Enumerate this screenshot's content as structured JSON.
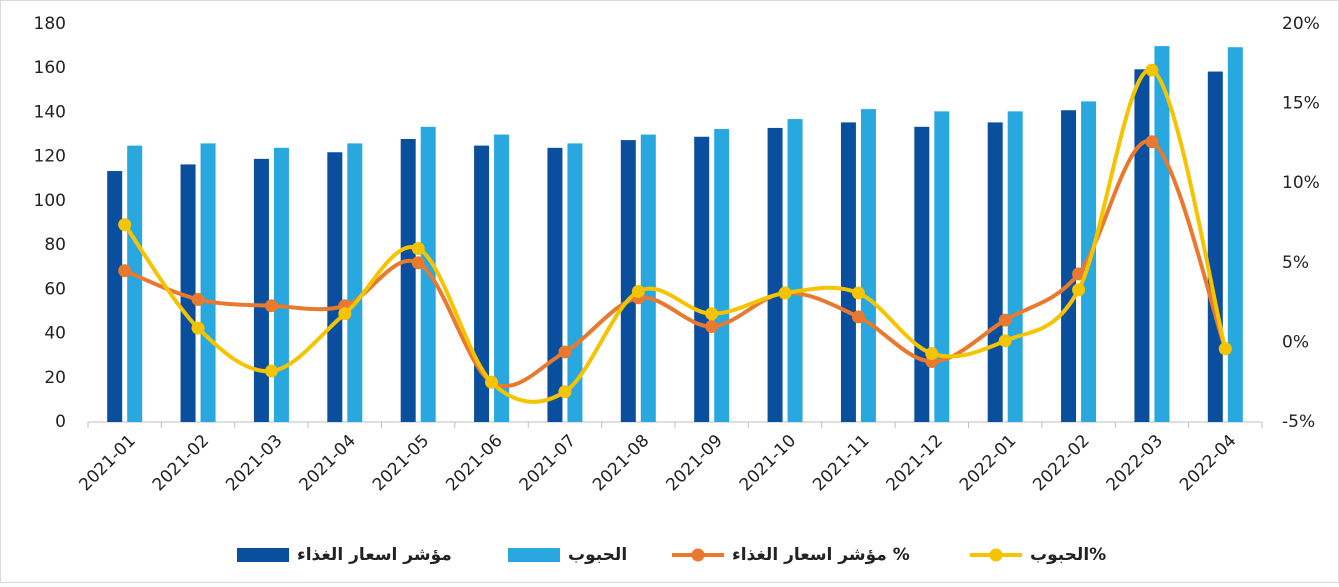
{
  "chart_data": {
    "type": "bar_line",
    "categories": [
      "2021-01",
      "2021-02",
      "2021-03",
      "2021-04",
      "2021-05",
      "2021-06",
      "2021-07",
      "2021-08",
      "2021-09",
      "2021-10",
      "2021-11",
      "2021-12",
      "2022-01",
      "2022-02",
      "2022-03",
      "2022-04"
    ],
    "series": [
      {
        "name": "مؤشر اسعار الغذاء",
        "type": "bar",
        "color": "#0a4f9e",
        "values": [
          113.5,
          116.5,
          119,
          122,
          128,
          125,
          124,
          127.5,
          129,
          133,
          135.5,
          133.5,
          135.5,
          141,
          159.5,
          158.5
        ]
      },
      {
        "name": "الحبوب",
        "type": "bar",
        "color": "#29a8e0",
        "values": [
          125,
          126,
          124,
          126,
          133.5,
          130,
          126,
          130,
          132.5,
          137,
          141.5,
          140.5,
          140.5,
          145,
          170,
          169.5
        ]
      },
      {
        "name": "مؤشر اسعار الغذاء %",
        "type": "line",
        "axis": "y2",
        "color": "#e8792f",
        "values": [
          4.5,
          2.7,
          2.3,
          2.3,
          5.0,
          -2.5,
          -0.6,
          2.8,
          1.0,
          3.1,
          1.6,
          -1.2,
          1.4,
          4.3,
          12.6,
          -0.4
        ]
      },
      {
        "name": "الحبوب%",
        "type": "line",
        "axis": "y2",
        "color": "#f5c400",
        "values": [
          7.4,
          0.9,
          -1.8,
          1.8,
          5.9,
          -2.5,
          -3.1,
          3.2,
          1.8,
          3.1,
          3.1,
          -0.7,
          0.1,
          3.3,
          17.1,
          -0.4
        ]
      }
    ],
    "ylim": [
      0,
      180
    ],
    "yticks": [
      0,
      20,
      40,
      60,
      80,
      100,
      120,
      140,
      160,
      180
    ],
    "y2lim": [
      -5,
      20
    ],
    "y2ticks": [
      {
        "value": -5,
        "label": "-5%"
      },
      {
        "value": 0,
        "label": "0%"
      },
      {
        "value": 5,
        "label": "5%"
      },
      {
        "value": 10,
        "label": "10%"
      },
      {
        "value": 15,
        "label": "15%"
      },
      {
        "value": 20,
        "label": "20%"
      }
    ],
    "legend": "bottom"
  }
}
